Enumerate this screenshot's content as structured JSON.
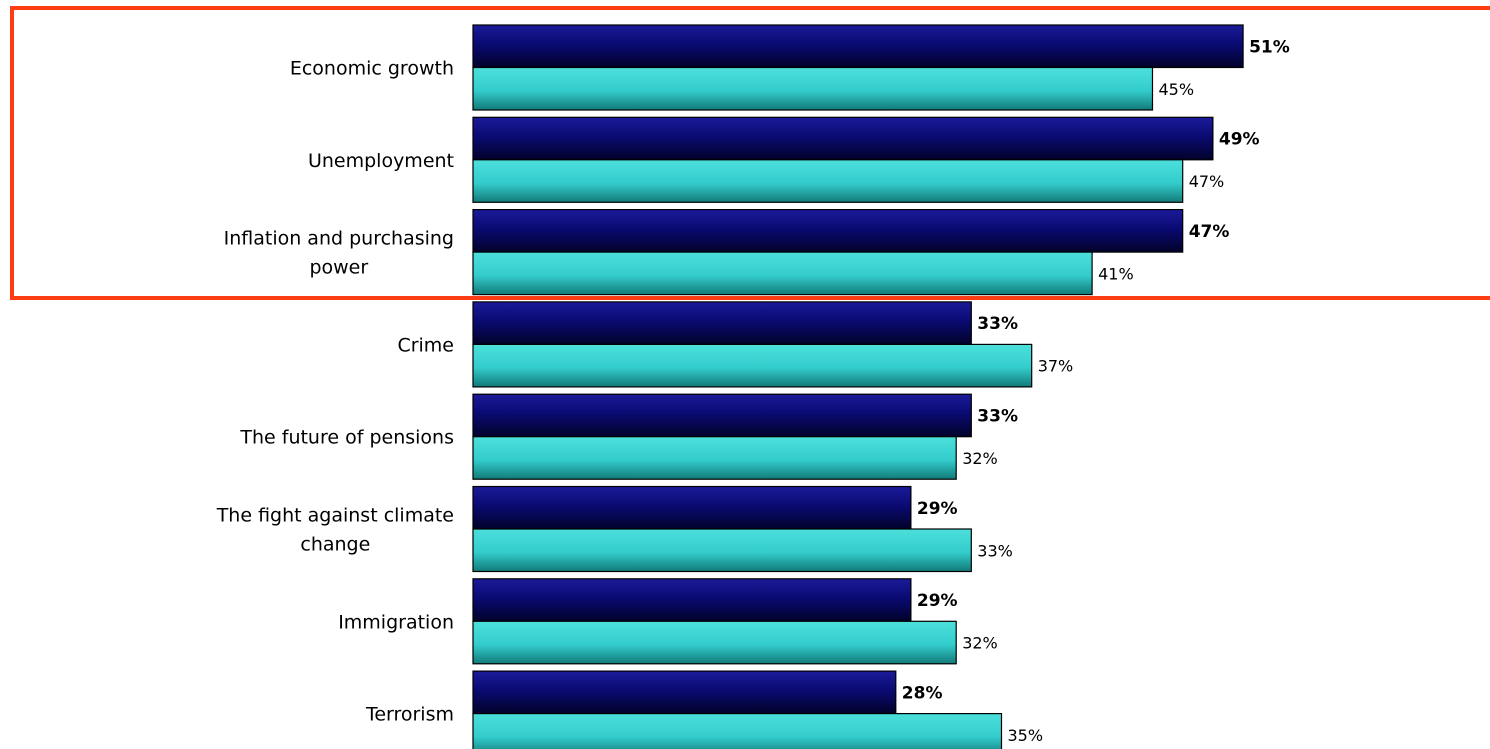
{
  "chart_data": {
    "type": "bar",
    "orientation": "horizontal",
    "categories": [
      [
        "Economic growth"
      ],
      [
        "Unemployment"
      ],
      [
        "Inflation and purchasing",
        "power"
      ],
      [
        "Crime"
      ],
      [
        "The future of pensions"
      ],
      [
        "The fight against climate",
        "change"
      ],
      [
        "Immigration"
      ],
      [
        "Terrorism"
      ]
    ],
    "series": [
      {
        "color": "#0a0a6e",
        "values": [
          51,
          49,
          47,
          33,
          33,
          29,
          29,
          28
        ],
        "value_labels": [
          "51%",
          "49%",
          "47%",
          "33%",
          "33%",
          "29%",
          "29%",
          "28%"
        ]
      },
      {
        "color": "#33cccc",
        "values": [
          45,
          47,
          41,
          37,
          32,
          33,
          32,
          35
        ],
        "value_labels": [
          "45%",
          "47%",
          "41%",
          "37%",
          "32%",
          "33%",
          "32%",
          "35%"
        ]
      }
    ],
    "xlim": [
      0,
      66
    ],
    "grid": false,
    "legend": "none",
    "highlight": {
      "color": "#ff3d14",
      "categories": [
        "Economic growth",
        "Unemployment",
        "Inflation and purchasing power"
      ]
    }
  }
}
